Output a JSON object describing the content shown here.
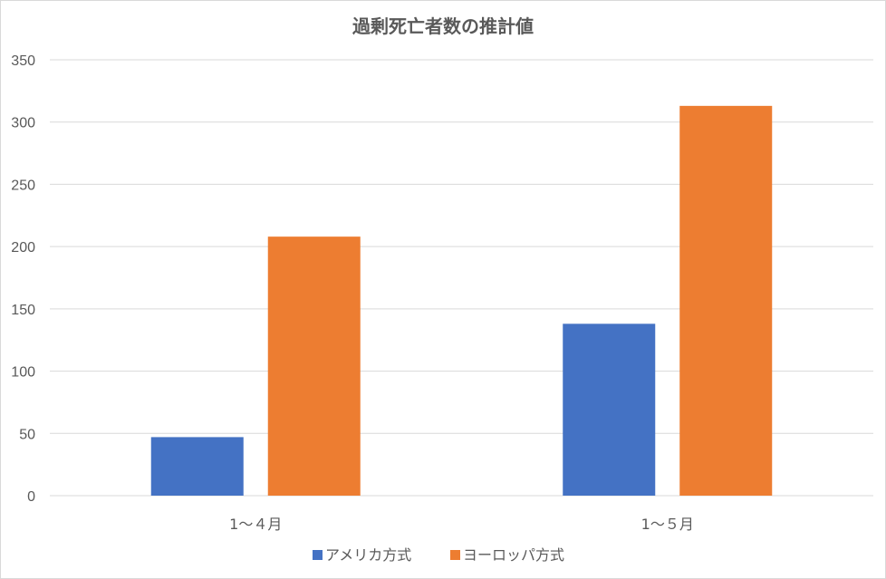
{
  "chart_data": {
    "type": "bar",
    "title": "過剰死亡者数の推計値",
    "xlabel": "",
    "ylabel": "",
    "categories": [
      "1～４月",
      "1～５月"
    ],
    "series": [
      {
        "name": "アメリカ方式",
        "color": "#4472c4",
        "values": [
          47,
          138
        ]
      },
      {
        "name": "ヨーロッパ方式",
        "color": "#ed7d31",
        "values": [
          208,
          313
        ]
      }
    ],
    "ylim": [
      0,
      350
    ],
    "yticks": [
      0,
      50,
      100,
      150,
      200,
      250,
      300,
      350
    ],
    "grid": true,
    "legend_position": "bottom"
  }
}
